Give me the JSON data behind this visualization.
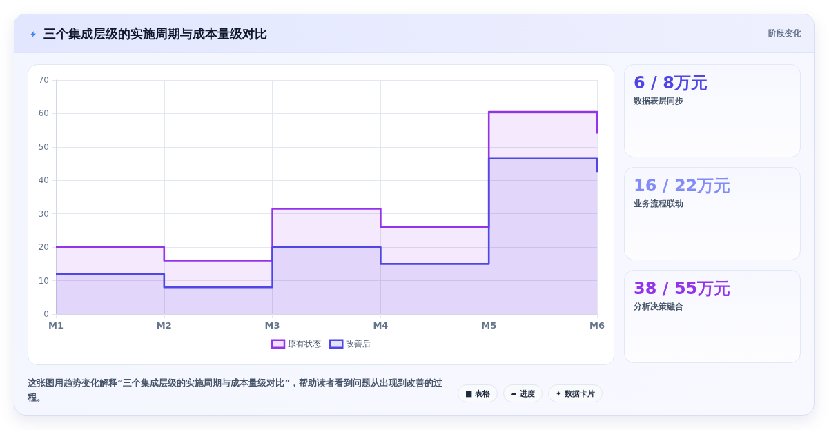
{
  "chart_data": [
    {
      "type": "step",
      "title": "三个集成层级的实施周期与成本量级对比",
      "categories": [
        "M1",
        "M2",
        "M3",
        "M4",
        "M5",
        "M6"
      ],
      "series": [
        {
          "type": "area",
          "color": "#9333ea",
          "values": [
            20,
            16,
            31.5,
            26,
            60.5,
            54
          ]
        },
        {
          "type": "area",
          "color": "#4f46e5",
          "values": [
            12,
            8,
            20,
            15,
            46.5,
            42.5
          ]
        },
        {
          "name": "原有状态",
          "color": "#9333ea",
          "values": [
            20,
            16,
            31.5,
            26,
            60.5,
            54
          ]
        },
        {
          "name": "改善后",
          "color": "#4f46e5",
          "values": [
            12,
            8,
            20,
            15,
            46.5,
            42.5
          ]
        }
      ],
      "ylim": [
        0,
        70
      ],
      "yticks": [
        0,
        10,
        20,
        30,
        40,
        50,
        60,
        70
      ],
      "grid": true,
      "legend": "bottom",
      "marker": "none",
      "annotations": [
        "这张图用趋势变化解释“三个集成层级的实施周期与成本量级对比”，帮助读者看到问题从出现到改善的过程。",
        "■ 表格",
        "▰ 进度",
        "✦ 数据卡片"
      ]
    },
    {
      "type": "other",
      "title": "阶段变化",
      "annotations": [
        "6 / 8万元",
        "数据表层同步",
        "16 / 22万元",
        "业务流程联动",
        "38 / 55万元",
        "分析决策融合"
      ]
    }
  ]
}
